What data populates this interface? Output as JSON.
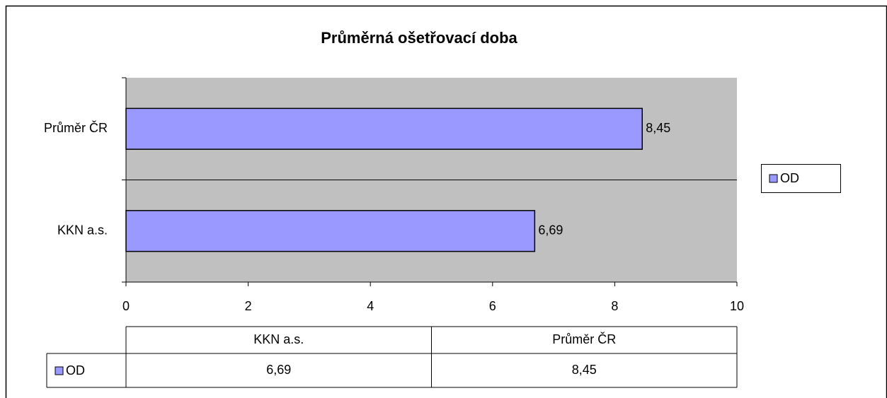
{
  "chart_data": {
    "type": "bar",
    "orientation": "horizontal",
    "title": "Průměrná ošetřovací doba",
    "categories": [
      "KKN a.s.",
      "Průměr ČR"
    ],
    "series": [
      {
        "name": "OD",
        "color": "#9999ff",
        "values": [
          6.69,
          8.45
        ],
        "value_labels": [
          "6,69",
          "8,45"
        ]
      }
    ],
    "xlim": [
      0,
      10
    ],
    "xticks": [
      0,
      2,
      4,
      6,
      8,
      10
    ],
    "grid": true,
    "legend": "right",
    "data_table": true
  }
}
